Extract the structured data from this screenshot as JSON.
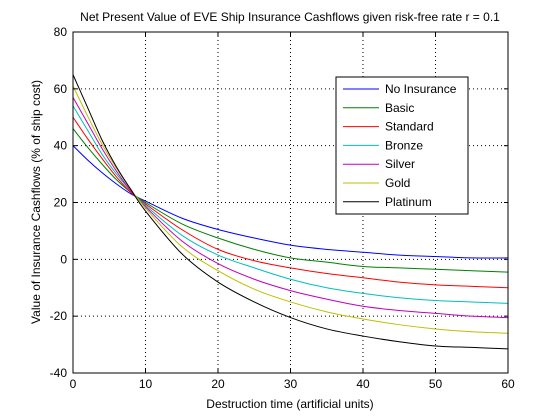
{
  "chart_data": {
    "type": "line",
    "title": "Net Present Value of EVE Ship Insurance Cashflows given risk-free rate r = 0.1",
    "xlabel": "Destruction time (artificial units)",
    "ylabel": "Value of Insurance Cashflows (% of ship cost)",
    "xlim": [
      0,
      60
    ],
    "ylim": [
      -40,
      80
    ],
    "xticks": [
      0,
      10,
      20,
      30,
      40,
      50,
      60
    ],
    "yticks": [
      -40,
      -20,
      0,
      20,
      40,
      60,
      80
    ],
    "xtick_labels": [
      "0",
      "10",
      "20",
      "30",
      "40",
      "50",
      "60"
    ],
    "ytick_labels": [
      "-40",
      "-20",
      "0",
      "20",
      "40",
      "60",
      "80"
    ],
    "grid": true,
    "legend_position": "top-right",
    "x": [
      0,
      2,
      4,
      6,
      8,
      10,
      15,
      20,
      25,
      30,
      35,
      40,
      45,
      50,
      55,
      60
    ],
    "series": [
      {
        "name": "No Insurance",
        "color": "#0000ff",
        "values": [
          40,
          35,
          30.5,
          26.5,
          23,
          20.5,
          14.5,
          10.5,
          7.5,
          5,
          3.5,
          2.5,
          1.5,
          1,
          0.5,
          0.5
        ]
      },
      {
        "name": "Basic",
        "color": "#008000",
        "values": [
          46,
          39.5,
          33.5,
          28,
          23.5,
          20,
          12.5,
          7.5,
          3.5,
          0.5,
          -1,
          -2.5,
          -3,
          -3.5,
          -4,
          -4.5
        ]
      },
      {
        "name": "Standard",
        "color": "#ff0000",
        "values": [
          50,
          42.5,
          35.5,
          29,
          23.5,
          19.5,
          10.5,
          3.5,
          -0.5,
          -3,
          -5,
          -6.5,
          -8,
          -9,
          -9.5,
          -10
        ]
      },
      {
        "name": "Bronze",
        "color": "#00bfbf",
        "values": [
          54,
          45.5,
          37,
          30,
          24,
          19,
          8.5,
          1.5,
          -3,
          -7,
          -10,
          -12,
          -13.5,
          -14.5,
          -15,
          -15.5
        ]
      },
      {
        "name": "Silver",
        "color": "#bf00bf",
        "values": [
          57,
          48,
          39,
          31,
          24,
          18.5,
          6.5,
          -1.5,
          -7,
          -11,
          -14,
          -16.5,
          -18,
          -19,
          -20,
          -20.5
        ]
      },
      {
        "name": "Gold",
        "color": "#bfbf00",
        "values": [
          61,
          50.5,
          40.5,
          32,
          24.5,
          18,
          4.5,
          -4,
          -10.5,
          -15,
          -18.5,
          -21,
          -23,
          -24.5,
          -25.5,
          -26
        ]
      },
      {
        "name": "Platinum",
        "color": "#000000",
        "values": [
          65,
          53.5,
          42,
          32.5,
          24.5,
          17,
          2,
          -8,
          -15,
          -20.5,
          -24.5,
          -27,
          -29,
          -30.5,
          -31,
          -31.5
        ]
      }
    ]
  }
}
